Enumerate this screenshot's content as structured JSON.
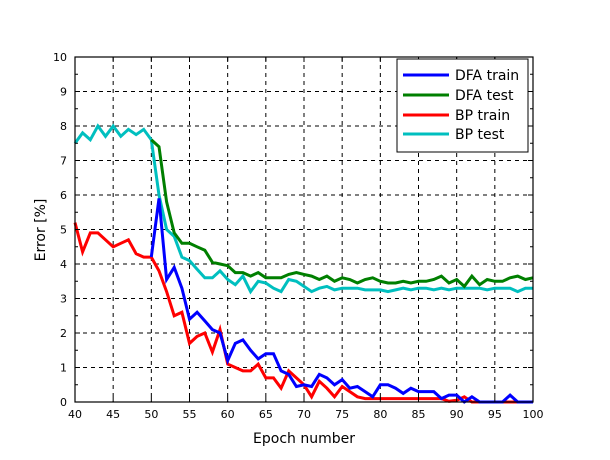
{
  "chart_data": {
    "type": "line",
    "title": "",
    "xlabel": "Epoch number",
    "ylabel": "Error [%]",
    "xlim": [
      40,
      100
    ],
    "ylim": [
      0,
      10
    ],
    "xticks": [
      "40",
      "45",
      "50",
      "55",
      "60",
      "65",
      "70",
      "75",
      "80",
      "85",
      "90",
      "95",
      "100"
    ],
    "yticks": [
      "0",
      "1",
      "2",
      "3",
      "4",
      "5",
      "6",
      "7",
      "8",
      "9",
      "10"
    ],
    "grid": true,
    "legend_position": "top-right",
    "series": [
      {
        "name": "DFA train",
        "color": "#0000ff",
        "x_start": 50,
        "values": [
          4.2,
          5.9,
          3.55,
          3.9,
          3.3,
          2.4,
          2.6,
          2.35,
          2.1,
          2.0,
          1.2,
          1.7,
          1.8,
          1.5,
          1.25,
          1.4,
          1.4,
          0.9,
          0.8,
          0.45,
          0.5,
          0.45,
          0.8,
          0.7,
          0.5,
          0.65,
          0.4,
          0.45,
          0.3,
          0.15,
          0.5,
          0.5,
          0.4,
          0.25,
          0.4,
          0.3,
          0.3,
          0.3,
          0.1,
          0.2,
          0.2,
          0,
          0.15,
          0,
          0,
          0,
          0,
          0.2,
          0,
          0,
          0
        ]
      },
      {
        "name": "DFA test",
        "color": "#007f00",
        "x_start": 50,
        "values": [
          7.6,
          7.4,
          5.8,
          4.9,
          4.6,
          4.6,
          4.5,
          4.4,
          4.05,
          4.0,
          3.95,
          3.75,
          3.75,
          3.65,
          3.75,
          3.6,
          3.6,
          3.6,
          3.7,
          3.75,
          3.7,
          3.65,
          3.55,
          3.65,
          3.5,
          3.6,
          3.55,
          3.45,
          3.55,
          3.6,
          3.5,
          3.45,
          3.45,
          3.5,
          3.45,
          3.5,
          3.5,
          3.55,
          3.65,
          3.45,
          3.55,
          3.35,
          3.65,
          3.4,
          3.55,
          3.5,
          3.5,
          3.6,
          3.65,
          3.55,
          3.6
        ]
      },
      {
        "name": "BP train",
        "color": "#ff0000",
        "x_start": 40,
        "values": [
          5.2,
          4.35,
          4.9,
          4.9,
          4.7,
          4.5,
          4.6,
          4.7,
          4.3,
          4.2,
          4.2,
          3.8,
          3.2,
          2.5,
          2.6,
          1.7,
          1.9,
          2.0,
          1.45,
          2.1,
          1.1,
          1.0,
          0.9,
          0.9,
          1.1,
          0.7,
          0.7,
          0.4,
          0.9,
          0.7,
          0.5,
          0.15,
          0.6,
          0.4,
          0.15,
          0.45,
          0.3,
          0.15,
          0.1,
          0.1,
          0.1,
          0.1,
          0.1,
          0.1,
          0.1,
          0.1,
          0.1,
          0.1,
          0.1,
          0.02,
          0.05,
          0.15,
          0,
          0,
          0,
          0,
          0,
          0,
          0,
          0,
          0
        ]
      },
      {
        "name": "BP test",
        "color": "#00bfbf",
        "x_start": 40,
        "values": [
          7.5,
          7.8,
          7.6,
          8.0,
          7.7,
          8.0,
          7.7,
          7.9,
          7.75,
          7.9,
          7.6,
          6.0,
          5.0,
          4.8,
          4.2,
          4.1,
          3.85,
          3.6,
          3.6,
          3.8,
          3.55,
          3.4,
          3.65,
          3.2,
          3.5,
          3.45,
          3.3,
          3.2,
          3.55,
          3.5,
          3.35,
          3.2,
          3.3,
          3.35,
          3.25,
          3.3,
          3.3,
          3.3,
          3.25,
          3.25,
          3.25,
          3.2,
          3.25,
          3.3,
          3.25,
          3.3,
          3.3,
          3.25,
          3.3,
          3.25,
          3.3,
          3.3,
          3.3,
          3.3,
          3.25,
          3.3,
          3.3,
          3.3,
          3.2,
          3.3,
          3.3
        ]
      }
    ]
  }
}
